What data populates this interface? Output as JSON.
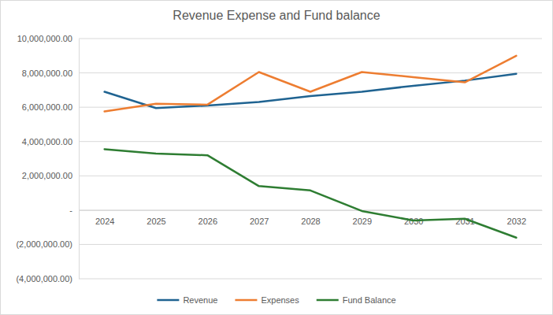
{
  "chart_data": {
    "type": "line",
    "title": "Revenue Expense and Fund balance",
    "categories": [
      "2024",
      "2025",
      "2026",
      "2027",
      "2028",
      "2029",
      "2030",
      "2031",
      "2032"
    ],
    "series": [
      {
        "name": "Revenue",
        "color": "#1f6391",
        "values": [
          6900000,
          5950000,
          6100000,
          6300000,
          6650000,
          6900000,
          7250000,
          7550000,
          7950000
        ]
      },
      {
        "name": "Expenses",
        "color": "#ed7d31",
        "values": [
          5750000,
          6200000,
          6150000,
          8050000,
          6900000,
          8050000,
          7750000,
          7450000,
          9000000
        ]
      },
      {
        "name": "Fund Balance",
        "color": "#2e7d32",
        "values": [
          3550000,
          3300000,
          3200000,
          1400000,
          1150000,
          -50000,
          -600000,
          -500000,
          -1600000
        ]
      }
    ],
    "ylim": [
      -4000000,
      10000000
    ],
    "yticks": [
      {
        "value": -4000000,
        "label": "(4,000,000.00)"
      },
      {
        "value": -2000000,
        "label": "(2,000,000.00)"
      },
      {
        "value": 0,
        "label": "-"
      },
      {
        "value": 2000000,
        "label": "2,000,000.00"
      },
      {
        "value": 4000000,
        "label": "4,000,000.00"
      },
      {
        "value": 6000000,
        "label": "6,000,000.00"
      },
      {
        "value": 8000000,
        "label": "8,000,000.00"
      },
      {
        "value": 10000000,
        "label": "10,000,000.00"
      }
    ],
    "grid": true,
    "legend": "bottom"
  }
}
